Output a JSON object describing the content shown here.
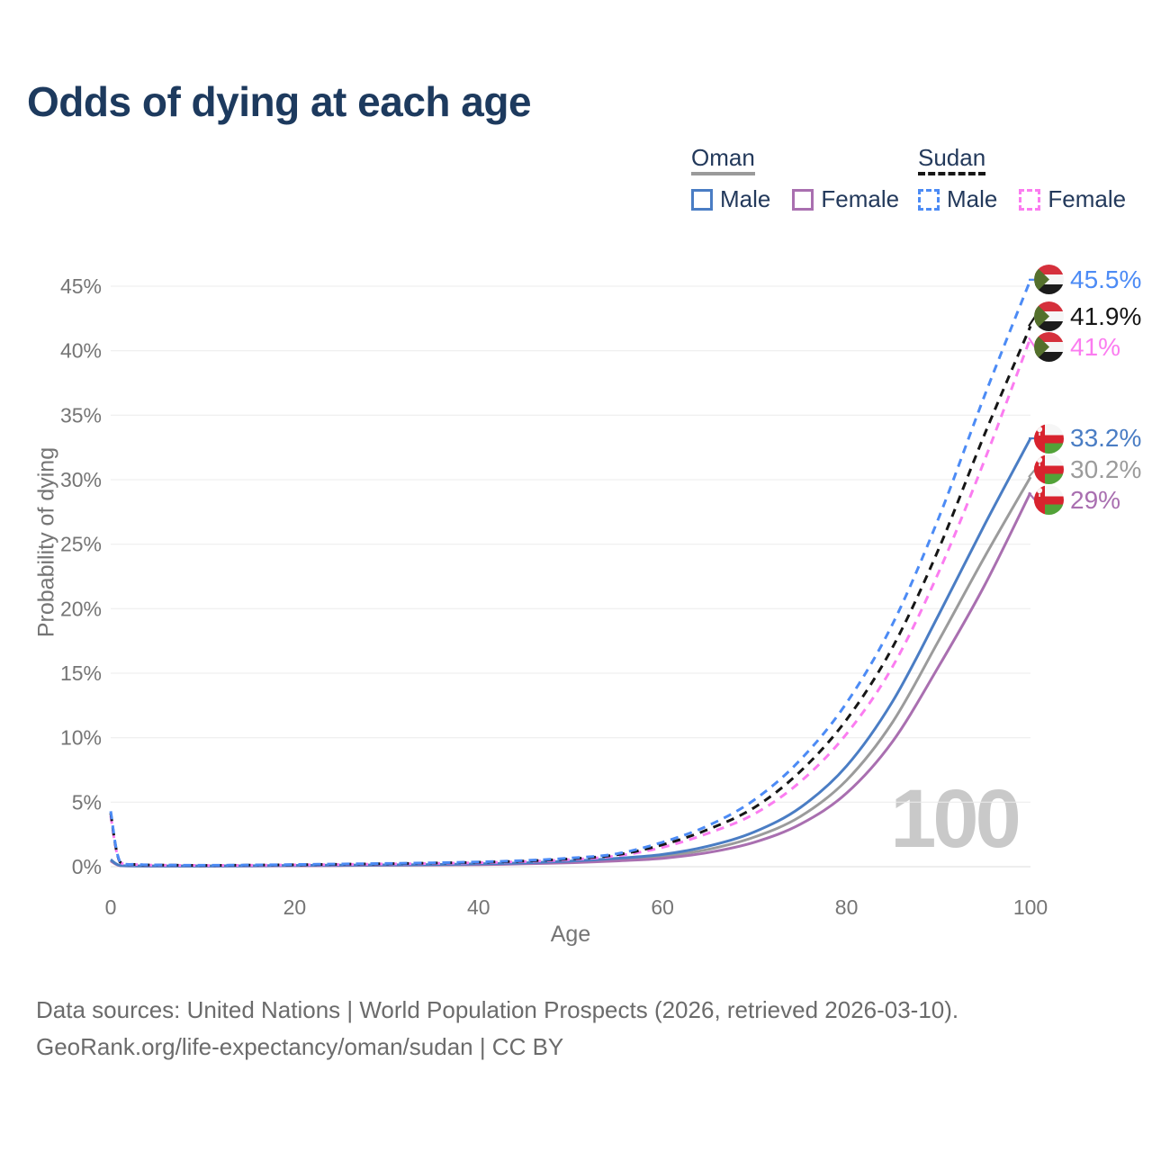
{
  "title": "Odds of dying at each age",
  "legend": {
    "groups": [
      {
        "name": "Oman",
        "line_color": "#9a9a9a",
        "line_style": "solid",
        "items": [
          {
            "label": "Male",
            "color": "#4a7dc4",
            "style": "solid"
          },
          {
            "label": "Female",
            "color": "#a96fb0",
            "style": "solid"
          }
        ]
      },
      {
        "name": "Sudan",
        "line_color": "#161616",
        "line_style": "dashed",
        "items": [
          {
            "label": "Male",
            "color": "#4c8bf5",
            "style": "dashed"
          },
          {
            "label": "Female",
            "color": "#fb7cf0",
            "style": "dashed"
          }
        ]
      }
    ]
  },
  "chart_data": {
    "type": "line",
    "title": "Odds of dying at each age",
    "xlabel": "Age",
    "ylabel": "Probability of dying",
    "xlim": [
      0,
      100
    ],
    "ylim": [
      0,
      45
    ],
    "xticks": [
      0,
      20,
      40,
      60,
      80,
      100
    ],
    "yticks": [
      0,
      5,
      10,
      15,
      20,
      25,
      30,
      35,
      40,
      45
    ],
    "ytick_suffix": "%",
    "grid": "horizontal",
    "legend_position": "top-right",
    "watermark": "100",
    "ages": [
      0,
      1,
      3,
      5,
      10,
      15,
      20,
      25,
      30,
      35,
      40,
      45,
      50,
      55,
      60,
      65,
      70,
      75,
      80,
      85,
      90,
      95,
      100
    ],
    "series": [
      {
        "id": "oman-both",
        "name": "Oman — Both sexes",
        "country": "Oman",
        "flag": "oman",
        "color": "#9b9b9b",
        "dash": false,
        "end_label": "30.2%",
        "values": [
          0.5,
          0.09,
          0.06,
          0.05,
          0.05,
          0.06,
          0.08,
          0.1,
          0.12,
          0.15,
          0.19,
          0.26,
          0.37,
          0.55,
          0.8,
          1.35,
          2.3,
          3.9,
          6.7,
          11.2,
          17.5,
          24.0,
          30.2
        ]
      },
      {
        "id": "oman-female",
        "name": "Oman — Female",
        "country": "Oman",
        "flag": "oman",
        "color": "#a96fb0",
        "dash": false,
        "end_label": "29%",
        "values": [
          0.45,
          0.08,
          0.05,
          0.04,
          0.04,
          0.05,
          0.07,
          0.09,
          0.11,
          0.13,
          0.16,
          0.22,
          0.31,
          0.45,
          0.65,
          1.1,
          1.9,
          3.3,
          5.7,
          9.7,
          15.5,
          21.8,
          29.0
        ]
      },
      {
        "id": "oman-male",
        "name": "Oman — Male",
        "country": "Oman",
        "flag": "oman",
        "color": "#4a7dc4",
        "dash": false,
        "end_label": "33.2%",
        "values": [
          0.55,
          0.1,
          0.06,
          0.05,
          0.05,
          0.07,
          0.1,
          0.12,
          0.14,
          0.17,
          0.22,
          0.3,
          0.44,
          0.65,
          0.95,
          1.6,
          2.7,
          4.6,
          7.8,
          12.8,
          19.5,
          26.5,
          33.2
        ]
      },
      {
        "id": "sudan-female",
        "name": "Sudan — Female",
        "country": "Sudan",
        "flag": "sudan",
        "color": "#fb7cf0",
        "dash": true,
        "end_label": "41%",
        "values": [
          3.95,
          0.36,
          0.16,
          0.12,
          0.1,
          0.11,
          0.14,
          0.17,
          0.21,
          0.25,
          0.31,
          0.4,
          0.55,
          0.84,
          1.5,
          2.6,
          4.1,
          6.6,
          10.3,
          15.5,
          22.8,
          31.5,
          41.0
        ]
      },
      {
        "id": "sudan-both",
        "name": "Sudan — Both sexes",
        "country": "Sudan",
        "flag": "sudan",
        "color": "#161616",
        "dash": true,
        "end_label": "41.9%",
        "values": [
          4.15,
          0.38,
          0.17,
          0.13,
          0.1,
          0.12,
          0.15,
          0.19,
          0.23,
          0.28,
          0.34,
          0.44,
          0.61,
          0.92,
          1.7,
          2.9,
          4.6,
          7.4,
          11.4,
          17.0,
          24.6,
          33.5,
          41.9
        ]
      },
      {
        "id": "sudan-male",
        "name": "Sudan — Male",
        "country": "Sudan",
        "flag": "sudan",
        "color": "#4c8bf5",
        "dash": true,
        "end_label": "45.5%",
        "values": [
          4.3,
          0.4,
          0.18,
          0.14,
          0.11,
          0.13,
          0.17,
          0.21,
          0.25,
          0.3,
          0.37,
          0.48,
          0.67,
          1.0,
          1.9,
          3.2,
          5.2,
          8.3,
          12.7,
          18.8,
          27.0,
          36.5,
          45.5
        ]
      }
    ]
  },
  "flags": {
    "sudan": {
      "red": "#d5303c",
      "white": "#f6f6f6",
      "black": "#1b1b1b",
      "green": "#54702c"
    },
    "oman": {
      "red": "#d8232e",
      "white": "#f6f6f6",
      "green": "#52a238"
    }
  },
  "footer": {
    "line1": "Data sources: United Nations | World Population Prospects (2026, retrieved 2026-03-10).",
    "line2": "GeoRank.org/life-expectancy/oman/sudan | CC BY"
  }
}
